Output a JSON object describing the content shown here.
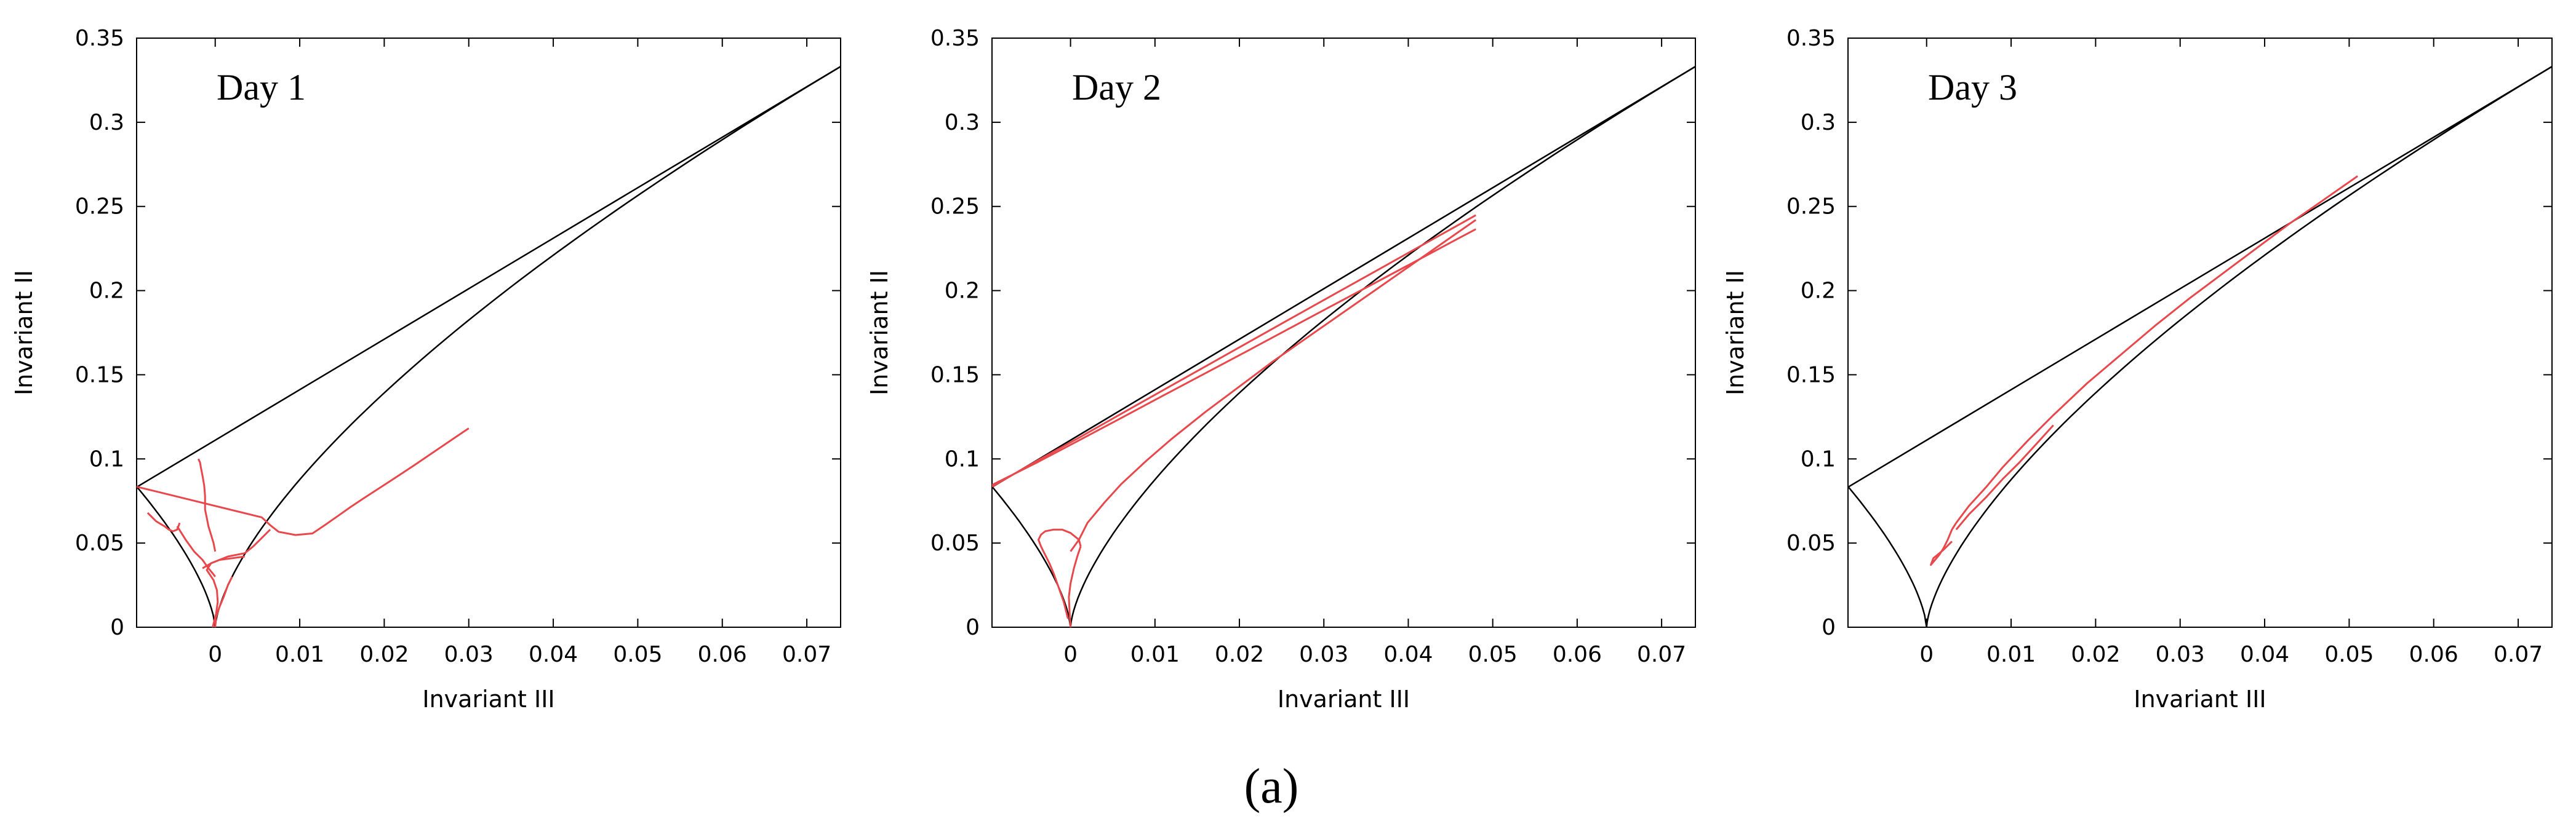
{
  "caption": "(a)",
  "chart_data": [
    {
      "type": "line",
      "title": "Day 1",
      "xlabel": "Invariant III",
      "ylabel": "Invariant II",
      "xlim": [
        -0.0093,
        0.074
      ],
      "ylim": [
        0,
        0.35
      ],
      "xticks": [
        0,
        0.01,
        0.02,
        0.03,
        0.04,
        0.05,
        0.06,
        0.07
      ],
      "xtick_labels": [
        "0",
        "0.01",
        "0.02",
        "0.03",
        "0.04",
        "0.05",
        "0.06",
        "0.07"
      ],
      "yticks": [
        0,
        0.05,
        0.1,
        0.15,
        0.2,
        0.25,
        0.3,
        0.35
      ],
      "ytick_labels": [
        "0",
        "0.05",
        "0.1",
        "0.15",
        "0.2",
        "0.25",
        "0.3",
        "0.35"
      ],
      "grid": false,
      "colors": {
        "boundary": "#000000",
        "data": "#e8474b"
      },
      "series": [
        {
          "x": [
            -0.0093,
            0.0055,
            0.0065,
            0.0075,
            0.0095,
            0.0115,
            0.013,
            0.0148,
            0.016,
            0.0175,
            0.019,
            0.0205,
            0.022,
            0.0235,
            0.025,
            0.027,
            0.0285,
            0.03
          ],
          "y": [
            0.0835,
            0.0653,
            0.0607,
            0.0567,
            0.0548,
            0.0557,
            0.0608,
            0.0671,
            0.0714,
            0.0764,
            0.0813,
            0.0862,
            0.0911,
            0.0961,
            0.1012,
            0.108,
            0.1131,
            0.1182
          ]
        },
        {
          "x": [
            -0.002,
            -0.0018,
            -0.0017,
            -0.0015,
            -0.0013,
            -0.0012,
            -0.0012,
            -0.001,
            -0.0008,
            -0.0005,
            -0.0002,
            0
          ],
          "y": [
            0.1,
            0.098,
            0.095,
            0.09,
            0.084,
            0.078,
            0.07,
            0.065,
            0.06,
            0.055,
            0.05,
            0.045
          ]
        },
        {
          "x": [
            -0.008,
            -0.007,
            -0.006,
            -0.0055,
            -0.005,
            -0.0045,
            -0.0042
          ],
          "y": [
            0.068,
            0.063,
            0.06,
            0.058,
            0.057,
            0.058,
            0.062
          ]
        },
        {
          "x": [
            -0.0045,
            -0.0035,
            -0.0025,
            -0.0015,
            -0.0008,
            -0.0003,
            0
          ],
          "y": [
            0.06,
            0.052,
            0.045,
            0.04,
            0.035,
            0.032,
            0.03
          ]
        },
        {
          "x": [
            -0.0015,
            -0.0005,
            0.0005,
            0.0015,
            0.0025,
            0.0035
          ],
          "y": [
            0.035,
            0.038,
            0.04,
            0.042,
            0.043,
            0.044
          ]
        },
        {
          "x": [
            0.0035,
            0.0045,
            0.0055,
            0.0065
          ],
          "y": [
            0.044,
            0.048,
            0.053,
            0.058
          ]
        },
        {
          "x": [
            0.002,
            0.0015,
            0.001,
            0.0005,
            0.0001,
            0
          ],
          "y": [
            0.03,
            0.025,
            0.018,
            0.012,
            0.006,
            0
          ]
        },
        {
          "x": [
            -0.0003,
            0.0001,
            0.0003,
            0.0002,
            -0.0002,
            -0.001,
            -0.0005,
            0.0005,
            0.002,
            0.0035
          ],
          "y": [
            0,
            0.008,
            0.015,
            0.022,
            0.028,
            0.034,
            0.038,
            0.04,
            0.041,
            0.042
          ]
        }
      ]
    },
    {
      "type": "line",
      "title": "Day 2",
      "xlabel": "Invariant III",
      "ylabel": "Invariant II",
      "xlim": [
        -0.0093,
        0.074
      ],
      "ylim": [
        0,
        0.35
      ],
      "xticks": [
        0,
        0.01,
        0.02,
        0.03,
        0.04,
        0.05,
        0.06,
        0.07
      ],
      "xtick_labels": [
        "0",
        "0.01",
        "0.02",
        "0.03",
        "0.04",
        "0.05",
        "0.06",
        "0.07"
      ],
      "yticks": [
        0,
        0.05,
        0.1,
        0.15,
        0.2,
        0.25,
        0.3,
        0.35
      ],
      "ytick_labels": [
        "0",
        "0.05",
        "0.1",
        "0.15",
        "0.2",
        "0.25",
        "0.3",
        "0.35"
      ],
      "grid": false,
      "colors": {
        "boundary": "#000000",
        "data": "#e8474b"
      },
      "series": [
        {
          "x": [
            -0.0093,
            -0.004,
            0.001,
            0.006,
            0.011,
            0.016,
            0.021,
            0.026,
            0.031,
            0.036,
            0.041,
            0.046,
            0.048
          ],
          "y": [
            0.0845,
            0.0978,
            0.111,
            0.1243,
            0.1377,
            0.151,
            0.1643,
            0.1777,
            0.1911,
            0.2044,
            0.2178,
            0.2312,
            0.2365
          ]
        },
        {
          "x": [
            -0.0093,
            -0.004,
            0.001,
            0.006,
            0.011,
            0.016,
            0.021,
            0.026,
            0.031,
            0.036,
            0.041,
            0.046,
            0.048
          ],
          "y": [
            0.0835,
            0.0988,
            0.1126,
            0.1268,
            0.1409,
            0.155,
            0.1691,
            0.1832,
            0.1972,
            0.2112,
            0.2252,
            0.2392,
            0.2448
          ]
        },
        {
          "x": [
            0,
            0.001,
            0.002,
            0.004,
            0.006,
            0.009,
            0.012,
            0.016,
            0.02,
            0.024,
            0.028,
            0.032,
            0.036,
            0.04,
            0.044,
            0.048
          ],
          "y": [
            0.045,
            0.052,
            0.062,
            0.074,
            0.085,
            0.099,
            0.112,
            0.128,
            0.143,
            0.158,
            0.172,
            0.186,
            0.2,
            0.214,
            0.228,
            0.242
          ]
        },
        {
          "x": [
            -0.0003,
            -0.0008,
            -0.0015,
            -0.002,
            -0.0025,
            -0.003,
            -0.0035,
            -0.0038,
            -0.0035,
            -0.003,
            -0.002,
            -0.001,
            0,
            0.001,
            0.0012
          ],
          "y": [
            0.005,
            0.015,
            0.025,
            0.032,
            0.038,
            0.043,
            0.048,
            0.052,
            0.055,
            0.057,
            0.058,
            0.058,
            0.056,
            0.052,
            0.048
          ]
        },
        {
          "x": [
            0.0012,
            0.0008,
            0.0004,
            0,
            -0.0002,
            -0.0001,
            0
          ],
          "y": [
            0.048,
            0.042,
            0.035,
            0.026,
            0.018,
            0.008,
            0
          ]
        }
      ]
    },
    {
      "type": "line",
      "title": "Day 3",
      "xlabel": "Invariant III",
      "ylabel": "Invariant II",
      "xlim": [
        -0.0093,
        0.074
      ],
      "ylim": [
        0,
        0.35
      ],
      "xticks": [
        0,
        0.01,
        0.02,
        0.03,
        0.04,
        0.05,
        0.06,
        0.07
      ],
      "xtick_labels": [
        "0",
        "0.01",
        "0.02",
        "0.03",
        "0.04",
        "0.05",
        "0.06",
        "0.07"
      ],
      "yticks": [
        0,
        0.05,
        0.1,
        0.15,
        0.2,
        0.25,
        0.3,
        0.35
      ],
      "ytick_labels": [
        "0",
        "0.05",
        "0.1",
        "0.15",
        "0.2",
        "0.25",
        "0.3",
        "0.35"
      ],
      "grid": false,
      "colors": {
        "boundary": "#000000",
        "data": "#e8474b"
      },
      "series": [
        {
          "x": [
            0.0035,
            0.005,
            0.007,
            0.009,
            0.012,
            0.015,
            0.019,
            0.023,
            0.027,
            0.031,
            0.035,
            0.039,
            0.043,
            0.047,
            0.051
          ],
          "y": [
            0.062,
            0.072,
            0.083,
            0.095,
            0.111,
            0.126,
            0.145,
            0.162,
            0.179,
            0.195,
            0.21,
            0.225,
            0.24,
            0.254,
            0.268
          ]
        },
        {
          "x": [
            0.0035,
            0.005,
            0.007,
            0.009,
            0.011,
            0.013,
            0.015
          ],
          "y": [
            0.058,
            0.067,
            0.077,
            0.088,
            0.098,
            0.109,
            0.12
          ]
        },
        {
          "x": [
            0.0035,
            0.003,
            0.0025,
            0.002,
            0.0015,
            0.001,
            0.0005,
            0.0008,
            0.002,
            0.003
          ],
          "y": [
            0.062,
            0.058,
            0.052,
            0.047,
            0.043,
            0.04,
            0.037,
            0.041,
            0.046,
            0.051
          ]
        }
      ]
    }
  ]
}
